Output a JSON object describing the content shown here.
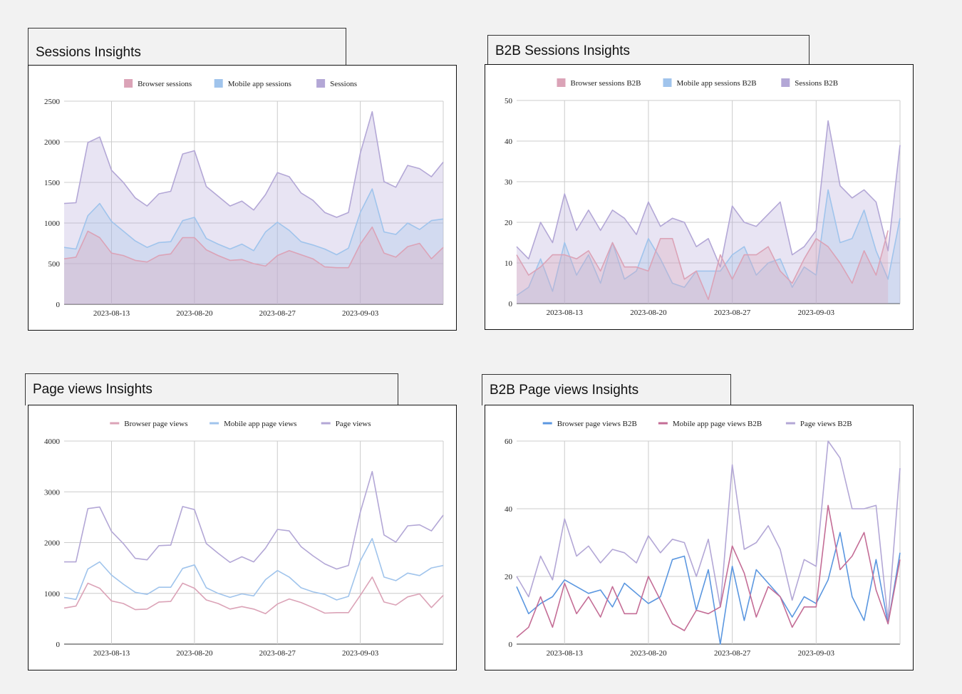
{
  "charts": [
    {
      "title": "Sessions Insights",
      "type": "area",
      "yticks": [
        0,
        500,
        1000,
        1500,
        2000,
        2500
      ],
      "ylim": [
        0,
        2500
      ],
      "x_tick_labels": [
        {
          "index": 4,
          "label": "2023-08-13"
        },
        {
          "index": 11,
          "label": "2023-08-20"
        },
        {
          "index": 18,
          "label": "2023-08-27"
        },
        {
          "index": 25,
          "label": "2023-09-03"
        }
      ],
      "series": [
        {
          "name": "Sessions",
          "color": "#b3a7d6",
          "values": [
            1240,
            1250,
            1990,
            2060,
            1650,
            1500,
            1310,
            1210,
            1360,
            1390,
            1850,
            1890,
            1450,
            1330,
            1210,
            1270,
            1160,
            1350,
            1620,
            1570,
            1370,
            1280,
            1130,
            1070,
            1130,
            1860,
            2370,
            1510,
            1440,
            1710,
            1670,
            1570,
            1750
          ]
        },
        {
          "name": "Mobile app sessions",
          "color": "#a0c4ec",
          "values": [
            700,
            680,
            1090,
            1240,
            1020,
            900,
            780,
            700,
            760,
            770,
            1030,
            1070,
            810,
            740,
            680,
            740,
            660,
            890,
            1010,
            910,
            770,
            730,
            680,
            610,
            690,
            1130,
            1420,
            890,
            860,
            1000,
            920,
            1030,
            1050
          ]
        },
        {
          "name": "Browser sessions",
          "color": "#dba3b7",
          "values": [
            560,
            580,
            900,
            820,
            630,
            600,
            540,
            520,
            600,
            620,
            820,
            820,
            670,
            600,
            540,
            550,
            500,
            470,
            600,
            660,
            610,
            560,
            460,
            450,
            450,
            740,
            950,
            630,
            580,
            710,
            750,
            560,
            700
          ]
        }
      ],
      "legend": [
        "Browser sessions",
        "Mobile app sessions",
        "Sessions"
      ]
    },
    {
      "title": "B2B Sessions Insights",
      "type": "area",
      "yticks": [
        0,
        10,
        20,
        30,
        40,
        50
      ],
      "ylim": [
        0,
        50
      ],
      "x_tick_labels": [
        {
          "index": 4,
          "label": "2023-08-13"
        },
        {
          "index": 11,
          "label": "2023-08-20"
        },
        {
          "index": 18,
          "label": "2023-08-27"
        },
        {
          "index": 25,
          "label": "2023-09-03"
        }
      ],
      "series": [
        {
          "name": "Sessions B2B",
          "color": "#b3a7d6",
          "values": [
            14,
            11,
            20,
            15,
            27,
            18,
            23,
            18,
            23,
            21,
            17,
            25,
            19,
            21,
            20,
            14,
            16,
            9,
            24,
            20,
            19,
            22,
            25,
            12,
            14,
            18,
            45,
            29,
            26,
            28,
            25,
            13,
            39
          ]
        },
        {
          "name": "Mobile app sessions B2B",
          "color": "#a0c4ec",
          "values": [
            2,
            4,
            11,
            3,
            15,
            7,
            12,
            5,
            15,
            6,
            8,
            16,
            11,
            5,
            4,
            8,
            8,
            8,
            12,
            14,
            7,
            10,
            11,
            4,
            9,
            7,
            28,
            15,
            16,
            23,
            13,
            6,
            21
          ]
        },
        {
          "name": "Browser sessions B2B",
          "color": "#dba3b7",
          "values": [
            12,
            7,
            9,
            12,
            12,
            11,
            13,
            8,
            15,
            9,
            9,
            8,
            16,
            16,
            6,
            8,
            1,
            12,
            6,
            12,
            12,
            14,
            8,
            5,
            11,
            16,
            14,
            10,
            5,
            13,
            7,
            18,
            null
          ]
        }
      ],
      "legend": [
        "Browser sessions B2B",
        "Mobile app sessions B2B",
        "Sessions B2B"
      ]
    },
    {
      "title": "Page views Insights",
      "type": "line",
      "yticks": [
        0,
        1000,
        2000,
        3000,
        4000
      ],
      "ylim": [
        0,
        4000
      ],
      "x_tick_labels": [
        {
          "index": 4,
          "label": "2023-08-13"
        },
        {
          "index": 11,
          "label": "2023-08-20"
        },
        {
          "index": 18,
          "label": "2023-08-27"
        },
        {
          "index": 25,
          "label": "2023-09-03"
        }
      ],
      "series": [
        {
          "name": "Page views",
          "color": "#b3a7d6",
          "values": [
            1620,
            1620,
            2670,
            2700,
            2220,
            1980,
            1690,
            1660,
            1940,
            1950,
            2710,
            2650,
            1980,
            1790,
            1610,
            1720,
            1620,
            1890,
            2260,
            2230,
            1920,
            1740,
            1580,
            1480,
            1550,
            2600,
            3400,
            2150,
            2010,
            2330,
            2350,
            2230,
            2540
          ]
        },
        {
          "name": "Mobile app page views",
          "color": "#a0c4ec",
          "values": [
            920,
            880,
            1480,
            1620,
            1360,
            1180,
            1020,
            980,
            1120,
            1120,
            1490,
            1560,
            1110,
            1000,
            920,
            990,
            950,
            1270,
            1450,
            1320,
            1110,
            1030,
            980,
            870,
            940,
            1640,
            2080,
            1320,
            1250,
            1400,
            1350,
            1500,
            1550
          ]
        },
        {
          "name": "Browser page views",
          "color": "#dba3b7",
          "values": [
            710,
            750,
            1200,
            1100,
            850,
            800,
            680,
            690,
            830,
            840,
            1200,
            1100,
            870,
            800,
            690,
            740,
            690,
            600,
            790,
            890,
            820,
            720,
            610,
            620,
            620,
            960,
            1320,
            830,
            770,
            930,
            990,
            720,
            960
          ]
        }
      ],
      "legend": [
        "Browser page views",
        "Mobile app page views",
        "Page views"
      ]
    },
    {
      "title": "B2B Page views Insights",
      "type": "line",
      "yticks": [
        0,
        20,
        40,
        60
      ],
      "ylim": [
        0,
        60
      ],
      "x_tick_labels": [
        {
          "index": 4,
          "label": "2023-08-13"
        },
        {
          "index": 11,
          "label": "2023-08-20"
        },
        {
          "index": 18,
          "label": "2023-08-27"
        },
        {
          "index": 25,
          "label": "2023-09-03"
        }
      ],
      "series": [
        {
          "name": "Page views B2B",
          "color": "#b3a7d6",
          "values": [
            20,
            14,
            26,
            19,
            37,
            26,
            29,
            24,
            28,
            27,
            24,
            32,
            27,
            31,
            30,
            20,
            31,
            11,
            53,
            28,
            30,
            35,
            28,
            13,
            25,
            23,
            60,
            55,
            40,
            40,
            41,
            7,
            52
          ]
        },
        {
          "name": "Browser page views B2B",
          "color": "#5b97e0",
          "values": [
            17,
            9,
            12,
            14,
            19,
            17,
            15,
            16,
            11,
            18,
            15,
            12,
            14,
            25,
            26,
            10,
            22,
            0,
            23,
            7,
            22,
            18,
            14,
            8,
            14,
            12,
            19,
            33,
            14,
            7,
            25,
            6,
            27
          ]
        },
        {
          "name": "Mobile app page views B2B",
          "color": "#c46d96",
          "values": [
            2,
            5,
            14,
            5,
            18,
            9,
            14,
            8,
            17,
            9,
            9,
            20,
            13,
            6,
            4,
            10,
            9,
            11,
            29,
            21,
            8,
            17,
            14,
            5,
            11,
            11,
            41,
            22,
            26,
            33,
            16,
            6,
            25
          ]
        }
      ],
      "legend": [
        "Browser page views B2B",
        "Mobile app page views B2B",
        "Page views B2B"
      ]
    }
  ]
}
